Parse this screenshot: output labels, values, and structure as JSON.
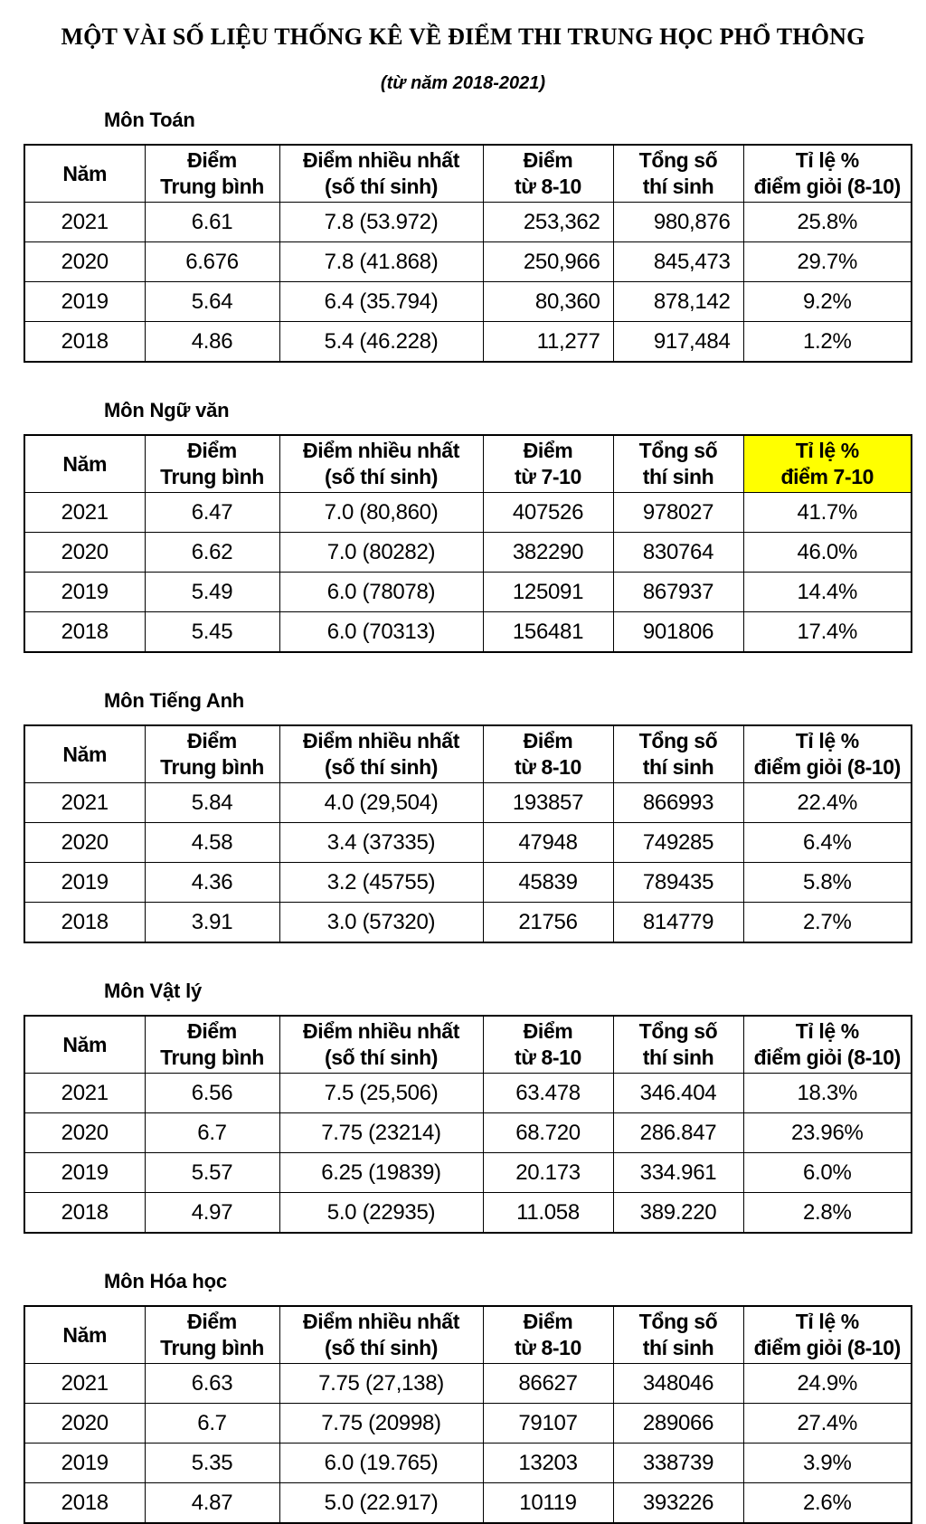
{
  "page": {
    "title": "MỘT VÀI SỐ LIỆU THỐNG KÊ VỀ ĐIỂM THI TRUNG HỌC PHỔ THÔNG",
    "subtitle": "(từ năm 2018-2021)"
  },
  "highlight_color": "#ffff00",
  "tables": [
    {
      "heading": "Môn Toán",
      "columns": [
        [
          "Năm"
        ],
        [
          "Điểm",
          "Trung bình"
        ],
        [
          "Điểm nhiều nhất",
          "(số thí sinh)"
        ],
        [
          "Điểm",
          "từ 8-10"
        ],
        [
          "Tổng số",
          "thí sinh"
        ],
        [
          "Tỉ lệ %",
          "điểm giỏi (8-10)"
        ]
      ],
      "highlight_last_header": false,
      "right_align_cols": [
        3,
        4
      ],
      "rows": [
        [
          "2021",
          "6.61",
          "7.8 (53.972)",
          "253,362",
          "980,876",
          "25.8%"
        ],
        [
          "2020",
          "6.676",
          "7.8 (41.868)",
          "250,966",
          "845,473",
          "29.7%"
        ],
        [
          "2019",
          "5.64",
          "6.4 (35.794)",
          "80,360",
          "878,142",
          "9.2%"
        ],
        [
          "2018",
          "4.86",
          "5.4 (46.228)",
          "11,277",
          "917,484",
          "1.2%"
        ]
      ]
    },
    {
      "heading": "Môn Ngữ văn",
      "columns": [
        [
          "Năm"
        ],
        [
          "Điểm",
          "Trung bình"
        ],
        [
          "Điểm nhiều nhất",
          "(số thí sinh)"
        ],
        [
          "Điểm",
          "từ 7-10"
        ],
        [
          "Tổng số",
          "thí sinh"
        ],
        [
          "Tỉ lệ %",
          "điểm 7-10"
        ]
      ],
      "highlight_last_header": true,
      "right_align_cols": [],
      "rows": [
        [
          "2021",
          "6.47",
          "7.0 (80,860)",
          "407526",
          "978027",
          "41.7%"
        ],
        [
          "2020",
          "6.62",
          "7.0 (80282)",
          "382290",
          "830764",
          "46.0%"
        ],
        [
          "2019",
          "5.49",
          "6.0 (78078)",
          "125091",
          "867937",
          "14.4%"
        ],
        [
          "2018",
          "5.45",
          "6.0 (70313)",
          "156481",
          "901806",
          "17.4%"
        ]
      ]
    },
    {
      "heading": "Môn Tiếng Anh",
      "columns": [
        [
          "Năm"
        ],
        [
          "Điểm",
          "Trung bình"
        ],
        [
          "Điểm nhiều nhất",
          "(số thí sinh)"
        ],
        [
          "Điểm",
          "từ 8-10"
        ],
        [
          "Tổng số",
          "thí sinh"
        ],
        [
          "Tỉ lệ %",
          "điểm giỏi (8-10)"
        ]
      ],
      "highlight_last_header": false,
      "right_align_cols": [],
      "rows": [
        [
          "2021",
          "5.84",
          "4.0 (29,504)",
          "193857",
          "866993",
          "22.4%"
        ],
        [
          "2020",
          "4.58",
          "3.4 (37335)",
          "47948",
          "749285",
          "6.4%"
        ],
        [
          "2019",
          "4.36",
          "3.2 (45755)",
          "45839",
          "789435",
          "5.8%"
        ],
        [
          "2018",
          "3.91",
          "3.0 (57320)",
          "21756",
          "814779",
          "2.7%"
        ]
      ]
    },
    {
      "heading": "Môn Vật lý",
      "columns": [
        [
          "Năm"
        ],
        [
          "Điểm",
          "Trung bình"
        ],
        [
          "Điểm nhiều nhất",
          "(số thí sinh)"
        ],
        [
          "Điểm",
          "từ 8-10"
        ],
        [
          "Tổng số",
          "thí sinh"
        ],
        [
          "Tỉ lệ %",
          "điểm giỏi (8-10)"
        ]
      ],
      "highlight_last_header": false,
      "right_align_cols": [],
      "rows": [
        [
          "2021",
          "6.56",
          "7.5 (25,506)",
          "63.478",
          "346.404",
          "18.3%"
        ],
        [
          "2020",
          "6.7",
          "7.75 (23214)",
          "68.720",
          "286.847",
          "23.96%"
        ],
        [
          "2019",
          "5.57",
          "6.25 (19839)",
          "20.173",
          "334.961",
          "6.0%"
        ],
        [
          "2018",
          "4.97",
          "5.0 (22935)",
          "11.058",
          "389.220",
          "2.8%"
        ]
      ]
    },
    {
      "heading": "Môn Hóa học",
      "columns": [
        [
          "Năm"
        ],
        [
          "Điểm",
          "Trung bình"
        ],
        [
          "Điểm nhiều nhất",
          "(số thí sinh)"
        ],
        [
          "Điểm",
          "từ 8-10"
        ],
        [
          "Tổng số",
          "thí sinh"
        ],
        [
          "Tỉ lệ %",
          "điểm giỏi (8-10)"
        ]
      ],
      "highlight_last_header": false,
      "right_align_cols": [],
      "rows": [
        [
          "2021",
          "6.63",
          "7.75 (27,138)",
          "86627",
          "348046",
          "24.9%"
        ],
        [
          "2020",
          "6.7",
          "7.75 (20998)",
          "79107",
          "289066",
          "27.4%"
        ],
        [
          "2019",
          "5.35",
          "6.0 (19.765)",
          "13203",
          "338739",
          "3.9%"
        ],
        [
          "2018",
          "4.87",
          "5.0 (22.917)",
          "10119",
          "393226",
          "2.6%"
        ]
      ]
    }
  ]
}
